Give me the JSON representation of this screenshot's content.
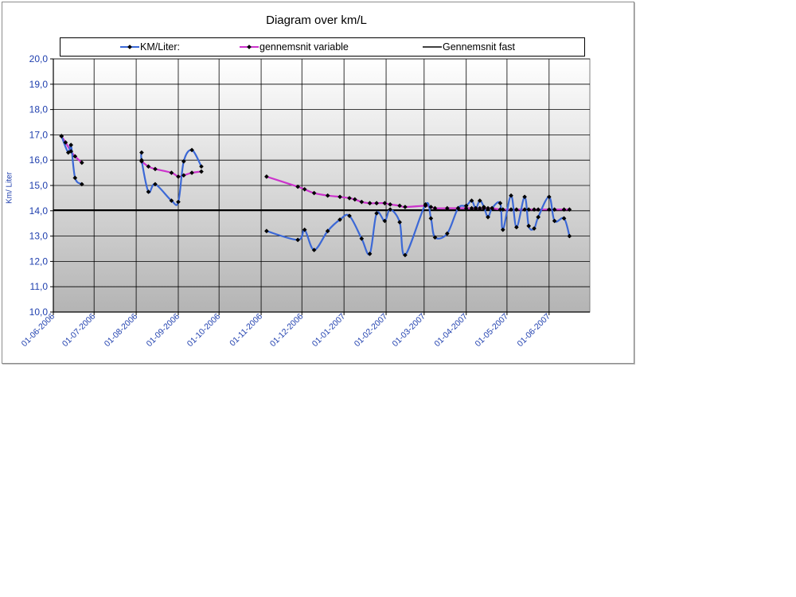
{
  "chart_data": {
    "type": "line",
    "title": "Diagram over km/L",
    "ylabel": "Km/ Liter",
    "xlabel": "",
    "ylim": [
      10.0,
      20.0
    ],
    "ytick_step": 1.0,
    "xlim": [
      "2006-06-01",
      "2007-07-01"
    ],
    "xticks": [
      "01-06-2006",
      "01-07-2006",
      "01-08-2006",
      "01-09-2006",
      "01-10-2006",
      "01-11-2006",
      "01-12-2006",
      "01-01-2007",
      "01-02-2007",
      "01-03-2007",
      "01-04-2007",
      "01-05-2007",
      "01-06-2007"
    ],
    "grid": true,
    "legend_position": "top",
    "colors": {
      "km_liter": "#3b68d6",
      "gennemsnit_variable": "#cc33cc",
      "gennemsnit_fast": "#000000"
    },
    "series": [
      {
        "name": "KM/Liter:",
        "segments": [
          [
            [
              "2006-06-07",
              16.95
            ],
            [
              "2006-06-12",
              16.3
            ],
            [
              "2006-06-14",
              16.6
            ],
            [
              "2006-06-17",
              15.3
            ],
            [
              "2006-06-22",
              15.05
            ]
          ],
          [
            [
              "2006-08-05",
              16.3
            ],
            [
              "2006-08-05",
              16.0
            ],
            [
              "2006-08-10",
              14.75
            ],
            [
              "2006-08-15",
              15.05
            ],
            [
              "2006-08-27",
              14.4
            ],
            [
              "2006-09-01",
              14.35
            ],
            [
              "2006-09-05",
              15.95
            ],
            [
              "2006-09-11",
              16.4
            ],
            [
              "2006-09-18",
              15.75
            ]
          ],
          [
            [
              "2006-11-05",
              13.2
            ],
            [
              "2006-11-28",
              12.85
            ],
            [
              "2006-12-03",
              13.25
            ],
            [
              "2006-12-10",
              12.45
            ],
            [
              "2006-12-20",
              13.2
            ],
            [
              "2006-12-29",
              13.65
            ],
            [
              "2007-01-05",
              13.8
            ],
            [
              "2007-01-14",
              12.9
            ],
            [
              "2007-01-20",
              12.3
            ],
            [
              "2007-01-25",
              13.9
            ],
            [
              "2007-01-31",
              13.6
            ],
            [
              "2007-02-04",
              14.05
            ],
            [
              "2007-02-11",
              13.55
            ],
            [
              "2007-02-15",
              12.25
            ],
            [
              "2007-03-02",
              14.25
            ],
            [
              "2007-03-06",
              13.7
            ],
            [
              "2007-03-09",
              12.95
            ],
            [
              "2007-03-18",
              13.1
            ],
            [
              "2007-03-26",
              14.1
            ],
            [
              "2007-04-01",
              14.2
            ],
            [
              "2007-04-05",
              14.4
            ],
            [
              "2007-04-08",
              14.1
            ],
            [
              "2007-04-11",
              14.4
            ],
            [
              "2007-04-14",
              14.15
            ],
            [
              "2007-04-17",
              13.75
            ],
            [
              "2007-04-20",
              14.1
            ],
            [
              "2007-04-26",
              14.3
            ],
            [
              "2007-04-28",
              13.25
            ],
            [
              "2007-05-04",
              14.6
            ],
            [
              "2007-05-08",
              13.35
            ],
            [
              "2007-05-14",
              14.55
            ],
            [
              "2007-05-17",
              13.4
            ],
            [
              "2007-05-21",
              13.3
            ],
            [
              "2007-05-24",
              13.75
            ],
            [
              "2007-06-01",
              14.55
            ],
            [
              "2007-06-05",
              13.6
            ],
            [
              "2007-06-12",
              13.7
            ],
            [
              "2007-06-16",
              13.0
            ]
          ]
        ]
      },
      {
        "name": "gennemsnit variable",
        "segments": [
          [
            [
              "2006-06-07",
              16.95
            ],
            [
              "2006-06-10",
              16.7
            ],
            [
              "2006-06-14",
              16.35
            ],
            [
              "2006-06-17",
              16.15
            ],
            [
              "2006-06-22",
              15.9
            ]
          ],
          [
            [
              "2006-08-05",
              15.95
            ],
            [
              "2006-08-10",
              15.75
            ],
            [
              "2006-08-15",
              15.65
            ],
            [
              "2006-08-27",
              15.5
            ],
            [
              "2006-09-01",
              15.35
            ],
            [
              "2006-09-05",
              15.4
            ],
            [
              "2006-09-11",
              15.5
            ],
            [
              "2006-09-18",
              15.55
            ]
          ],
          [
            [
              "2006-11-05",
              15.35
            ],
            [
              "2006-11-28",
              14.95
            ],
            [
              "2006-12-03",
              14.85
            ],
            [
              "2006-12-10",
              14.7
            ],
            [
              "2006-12-20",
              14.6
            ],
            [
              "2006-12-29",
              14.55
            ],
            [
              "2007-01-05",
              14.5
            ],
            [
              "2007-01-09",
              14.45
            ],
            [
              "2007-01-14",
              14.35
            ],
            [
              "2007-01-20",
              14.3
            ],
            [
              "2007-01-25",
              14.3
            ],
            [
              "2007-01-31",
              14.3
            ],
            [
              "2007-02-04",
              14.25
            ],
            [
              "2007-02-11",
              14.2
            ],
            [
              "2007-02-15",
              14.15
            ],
            [
              "2007-03-02",
              14.2
            ],
            [
              "2007-03-06",
              14.15
            ],
            [
              "2007-03-09",
              14.1
            ],
            [
              "2007-03-18",
              14.1
            ],
            [
              "2007-03-26",
              14.1
            ],
            [
              "2007-04-01",
              14.1
            ],
            [
              "2007-04-05",
              14.1
            ],
            [
              "2007-04-08",
              14.1
            ],
            [
              "2007-04-11",
              14.1
            ],
            [
              "2007-04-14",
              14.1
            ],
            [
              "2007-04-17",
              14.1
            ],
            [
              "2007-04-20",
              14.1
            ],
            [
              "2007-04-26",
              14.05
            ],
            [
              "2007-04-28",
              14.05
            ],
            [
              "2007-05-04",
              14.05
            ],
            [
              "2007-05-08",
              14.05
            ],
            [
              "2007-05-14",
              14.05
            ],
            [
              "2007-05-17",
              14.05
            ],
            [
              "2007-05-21",
              14.05
            ],
            [
              "2007-05-24",
              14.05
            ],
            [
              "2007-06-01",
              14.05
            ],
            [
              "2007-06-05",
              14.05
            ],
            [
              "2007-06-12",
              14.05
            ],
            [
              "2007-06-16",
              14.05
            ]
          ]
        ]
      },
      {
        "name": "Gennemsnit fast",
        "segments": [
          [
            [
              "2006-06-01",
              14.03
            ],
            [
              "2007-06-16",
              14.03
            ]
          ]
        ]
      }
    ]
  }
}
